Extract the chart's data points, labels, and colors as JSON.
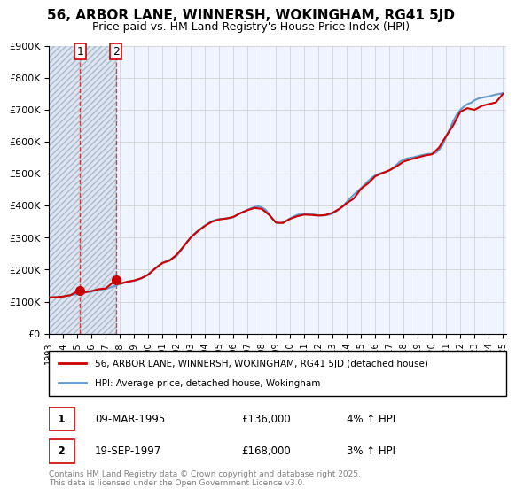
{
  "title": "56, ARBOR LANE, WINNERSH, WOKINGHAM, RG41 5JD",
  "subtitle": "Price paid vs. HM Land Registry's House Price Index (HPI)",
  "ylabel": "",
  "ylim": [
    0,
    900000
  ],
  "yticks": [
    0,
    100000,
    200000,
    300000,
    400000,
    500000,
    600000,
    700000,
    800000,
    900000
  ],
  "ytick_labels": [
    "£0",
    "£100K",
    "£200K",
    "£300K",
    "£400K",
    "£500K",
    "£600K",
    "£700K",
    "£800K",
    "£900K"
  ],
  "background_color": "#ffffff",
  "plot_bg_color": "#f0f4ff",
  "hatch_region_color": "#d0d8f0",
  "grid_color": "#cccccc",
  "sale1_date": 1995.19,
  "sale1_price": 136000,
  "sale1_label": "1",
  "sale2_date": 1997.72,
  "sale2_price": 168000,
  "sale2_label": "2",
  "legend_line1": "56, ARBOR LANE, WINNERSH, WOKINGHAM, RG41 5JD (detached house)",
  "legend_line2": "HPI: Average price, detached house, Wokingham",
  "table_row1": [
    "1",
    "09-MAR-1995",
    "£136,000",
    "4% ↑ HPI"
  ],
  "table_row2": [
    "2",
    "19-SEP-1997",
    "£168,000",
    "3% ↑ HPI"
  ],
  "footnote": "Contains HM Land Registry data © Crown copyright and database right 2025.\nThis data is licensed under the Open Government Licence v3.0.",
  "red_color": "#cc0000",
  "blue_color": "#6699cc",
  "hpi_years": [
    1993.0,
    1993.25,
    1993.5,
    1993.75,
    1994.0,
    1994.25,
    1994.5,
    1994.75,
    1995.0,
    1995.25,
    1995.5,
    1995.75,
    1996.0,
    1996.25,
    1996.5,
    1996.75,
    1997.0,
    1997.25,
    1997.5,
    1997.75,
    1998.0,
    1998.25,
    1998.5,
    1998.75,
    1999.0,
    1999.25,
    1999.5,
    1999.75,
    2000.0,
    2000.25,
    2000.5,
    2000.75,
    2001.0,
    2001.25,
    2001.5,
    2001.75,
    2002.0,
    2002.25,
    2002.5,
    2002.75,
    2003.0,
    2003.25,
    2003.5,
    2003.75,
    2004.0,
    2004.25,
    2004.5,
    2004.75,
    2005.0,
    2005.25,
    2005.5,
    2005.75,
    2006.0,
    2006.25,
    2006.5,
    2006.75,
    2007.0,
    2007.25,
    2007.5,
    2007.75,
    2008.0,
    2008.25,
    2008.5,
    2008.75,
    2009.0,
    2009.25,
    2009.5,
    2009.75,
    2010.0,
    2010.25,
    2010.5,
    2010.75,
    2011.0,
    2011.25,
    2011.5,
    2011.75,
    2012.0,
    2012.25,
    2012.5,
    2012.75,
    2013.0,
    2013.25,
    2013.5,
    2013.75,
    2014.0,
    2014.25,
    2014.5,
    2014.75,
    2015.0,
    2015.25,
    2015.5,
    2015.75,
    2016.0,
    2016.25,
    2016.5,
    2016.75,
    2017.0,
    2017.25,
    2017.5,
    2017.75,
    2018.0,
    2018.25,
    2018.5,
    2018.75,
    2019.0,
    2019.25,
    2019.5,
    2019.75,
    2020.0,
    2020.25,
    2020.5,
    2020.75,
    2021.0,
    2021.25,
    2021.5,
    2021.75,
    2022.0,
    2022.25,
    2022.5,
    2022.75,
    2023.0,
    2023.25,
    2023.5,
    2023.75,
    2024.0,
    2024.25,
    2024.5,
    2024.75,
    2025.0
  ],
  "hpi_values": [
    113000,
    113500,
    114000,
    114500,
    116000,
    118000,
    120000,
    122000,
    124000,
    126000,
    128000,
    130000,
    132000,
    134000,
    136000,
    138000,
    140000,
    143000,
    147000,
    151000,
    155000,
    158000,
    161000,
    163000,
    165000,
    168000,
    172000,
    178000,
    186000,
    195000,
    204000,
    213000,
    220000,
    226000,
    231000,
    236000,
    243000,
    256000,
    272000,
    288000,
    300000,
    312000,
    322000,
    330000,
    338000,
    346000,
    352000,
    356000,
    358000,
    359000,
    360000,
    361000,
    364000,
    370000,
    376000,
    382000,
    387000,
    392000,
    396000,
    398000,
    395000,
    388000,
    375000,
    360000,
    348000,
    345000,
    348000,
    354000,
    360000,
    366000,
    371000,
    374000,
    374000,
    375000,
    374000,
    372000,
    370000,
    369000,
    370000,
    372000,
    376000,
    382000,
    390000,
    400000,
    412000,
    424000,
    435000,
    445000,
    455000,
    466000,
    477000,
    487000,
    495000,
    500000,
    503000,
    505000,
    510000,
    518000,
    528000,
    538000,
    544000,
    548000,
    550000,
    552000,
    555000,
    558000,
    560000,
    562000,
    562000,
    565000,
    575000,
    590000,
    615000,
    640000,
    665000,
    685000,
    700000,
    710000,
    718000,
    722000,
    730000,
    735000,
    738000,
    740000,
    742000,
    745000,
    748000,
    750000,
    752000
  ],
  "price_years": [
    1993.0,
    1993.5,
    1994.0,
    1994.5,
    1995.19,
    1995.5,
    1996.0,
    1996.5,
    1997.0,
    1997.72,
    1998.0,
    1998.5,
    1999.0,
    1999.5,
    2000.0,
    2000.5,
    2001.0,
    2001.5,
    2002.0,
    2002.5,
    2003.0,
    2003.5,
    2004.0,
    2004.5,
    2005.0,
    2005.5,
    2006.0,
    2006.5,
    2007.0,
    2007.5,
    2008.0,
    2008.5,
    2009.0,
    2009.5,
    2010.0,
    2010.5,
    2011.0,
    2011.5,
    2012.0,
    2012.5,
    2013.0,
    2013.5,
    2014.0,
    2014.5,
    2015.0,
    2015.5,
    2016.0,
    2016.5,
    2017.0,
    2017.5,
    2018.0,
    2018.5,
    2019.0,
    2019.5,
    2020.0,
    2020.5,
    2021.0,
    2021.5,
    2022.0,
    2022.5,
    2023.0,
    2023.5,
    2024.0,
    2024.5,
    2025.0
  ],
  "price_values": [
    113000,
    113750,
    116000,
    120000,
    136000,
    129000,
    133000,
    139000,
    141000,
    168000,
    156000,
    162000,
    166000,
    173000,
    184000,
    204000,
    221000,
    228000,
    247000,
    273000,
    301000,
    320000,
    337000,
    350000,
    357000,
    360000,
    365000,
    377000,
    386000,
    393000,
    390000,
    372000,
    347000,
    346000,
    359000,
    367000,
    372000,
    371000,
    369000,
    371000,
    378000,
    391000,
    408000,
    423000,
    453000,
    470000,
    492000,
    502000,
    511000,
    523000,
    538000,
    545000,
    551000,
    557000,
    561000,
    582000,
    618000,
    652000,
    694000,
    705000,
    700000,
    712000,
    718000,
    723000,
    750000
  ],
  "xmin": 1993.0,
  "xmax": 2025.25,
  "xtick_years": [
    1993,
    1994,
    1995,
    1996,
    1997,
    1998,
    1999,
    2000,
    2001,
    2002,
    2003,
    2004,
    2005,
    2006,
    2007,
    2008,
    2009,
    2010,
    2011,
    2012,
    2013,
    2014,
    2015,
    2016,
    2017,
    2018,
    2019,
    2020,
    2021,
    2022,
    2023,
    2024,
    2025
  ]
}
